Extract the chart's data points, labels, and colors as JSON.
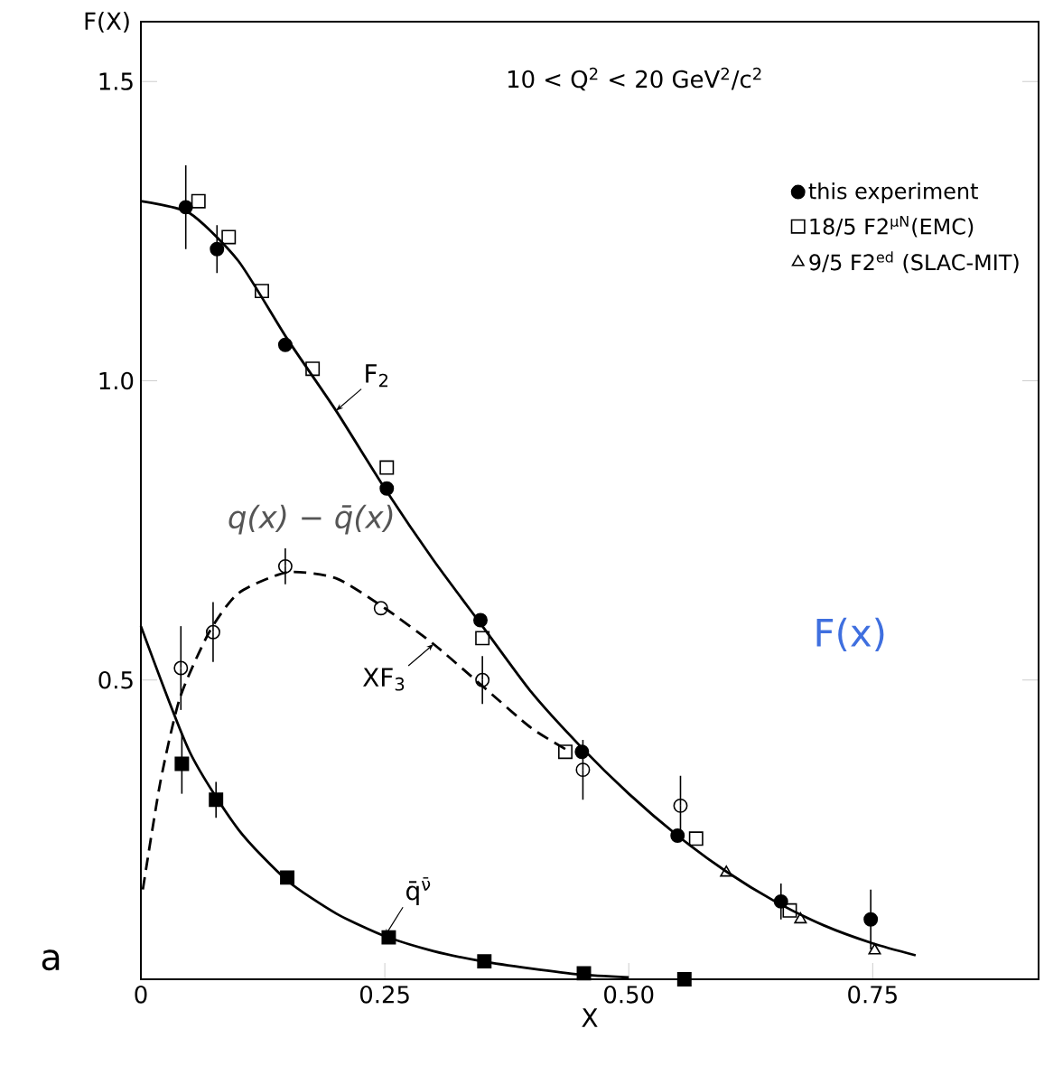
{
  "chart_data": {
    "type": "scatter",
    "xlabel": "X",
    "ylabel": "F(X)",
    "xlim": [
      0,
      0.92
    ],
    "ylim": [
      0,
      1.6
    ],
    "xticks": [
      {
        "value": 0,
        "label": "0"
      },
      0.25,
      {
        "value": 0.5,
        "label": "0.50"
      },
      0.75
    ],
    "yticks": [
      0.5,
      {
        "value": 1,
        "label": "1.0"
      },
      1.5
    ],
    "legend": "top right",
    "annotations": [
      "10 < Q$^{2}$ < 20 GeV$^{2}$/c$^{2}$",
      "a",
      "F(x)",
      "q(x) − q̄(x)"
    ],
    "series": [
      {
        "name": "this experiment",
        "color": "#000000",
        "marker": "circle",
        "x": [
          0.046,
          0.078,
          0.148,
          0.252,
          0.348,
          0.452,
          0.55,
          0.656,
          0.748
        ],
        "values": [
          1.29,
          1.22,
          1.06,
          0.82,
          0.6,
          0.38,
          0.24,
          0.13,
          0.1
        ],
        "errors": [
          0.07,
          0.04,
          null,
          null,
          null,
          null,
          null,
          0.03,
          0.05
        ]
      },
      {
        "color": "#000000",
        "marker": "circle open",
        "x": [
          0.041,
          0.074,
          0.148,
          0.246,
          0.35,
          0.453,
          0.553
        ],
        "values": [
          0.52,
          0.58,
          0.69,
          0.62,
          0.5,
          0.35,
          0.29
        ],
        "errors": [
          0.07,
          0.05,
          0.03,
          null,
          0.04,
          0.05,
          0.05
        ]
      },
      {
        "color": "#000000",
        "marker": "square",
        "x": [
          0.042,
          0.077,
          0.15,
          0.254,
          0.352,
          0.454,
          0.557
        ],
        "values": [
          0.36,
          0.3,
          0.17,
          0.07,
          0.03,
          0.01,
          0.0
        ],
        "errors": [
          0.05,
          0.03,
          null,
          null,
          null,
          null,
          null
        ]
      },
      {
        "name": "18/5 F2$^{μN}$(EMC)",
        "color": "#000000",
        "marker": "square open",
        "x": [
          0.059,
          0.09,
          0.124,
          0.176,
          0.252,
          0.35,
          0.435,
          0.569,
          0.665
        ],
        "values": [
          1.3,
          1.24,
          1.15,
          1.02,
          0.855,
          0.57,
          0.38,
          0.235,
          0.115
        ]
      },
      {
        "name": "9/5 F2$^{ed}$ (SLAC-MIT)",
        "color": "#000000",
        "marker": "triangle open",
        "x": [
          0.6,
          0.676,
          0.752
        ],
        "values": [
          0.178,
          0.1,
          0.048
        ]
      },
      {
        "type": "line",
        "name": "F$_{2}$",
        "color": "#000000",
        "line_style": "solid",
        "x": [
          0,
          0.05,
          0.1,
          0.15,
          0.2,
          0.25,
          0.3,
          0.35,
          0.4,
          0.45,
          0.5,
          0.55,
          0.6,
          0.65,
          0.7,
          0.75,
          0.794
        ],
        "values": [
          1.3,
          1.28,
          1.2,
          1.07,
          0.95,
          0.82,
          0.7,
          0.59,
          0.48,
          0.39,
          0.31,
          0.24,
          0.18,
          0.13,
          0.09,
          0.06,
          0.04
        ]
      },
      {
        "type": "line",
        "name": "XF$_{3}$",
        "color": "#000000",
        "line_style": "dashed",
        "x": [
          0.002,
          0.02,
          0.04,
          0.07,
          0.1,
          0.15,
          0.2,
          0.25,
          0.3,
          0.35,
          0.4,
          0.44
        ],
        "values": [
          0.15,
          0.33,
          0.47,
          0.58,
          0.645,
          0.68,
          0.67,
          0.62,
          0.56,
          0.49,
          0.42,
          0.38
        ]
      },
      {
        "type": "line",
        "name": "q̄$^{ν̄}$",
        "color": "#000000",
        "line_style": "solid",
        "x": [
          0,
          0.05,
          0.1,
          0.15,
          0.2,
          0.25,
          0.3,
          0.35,
          0.4,
          0.45,
          0.5
        ],
        "values": [
          0.59,
          0.38,
          0.25,
          0.165,
          0.11,
          0.072,
          0.047,
          0.03,
          0.018,
          0.008,
          0.003
        ]
      }
    ]
  }
}
